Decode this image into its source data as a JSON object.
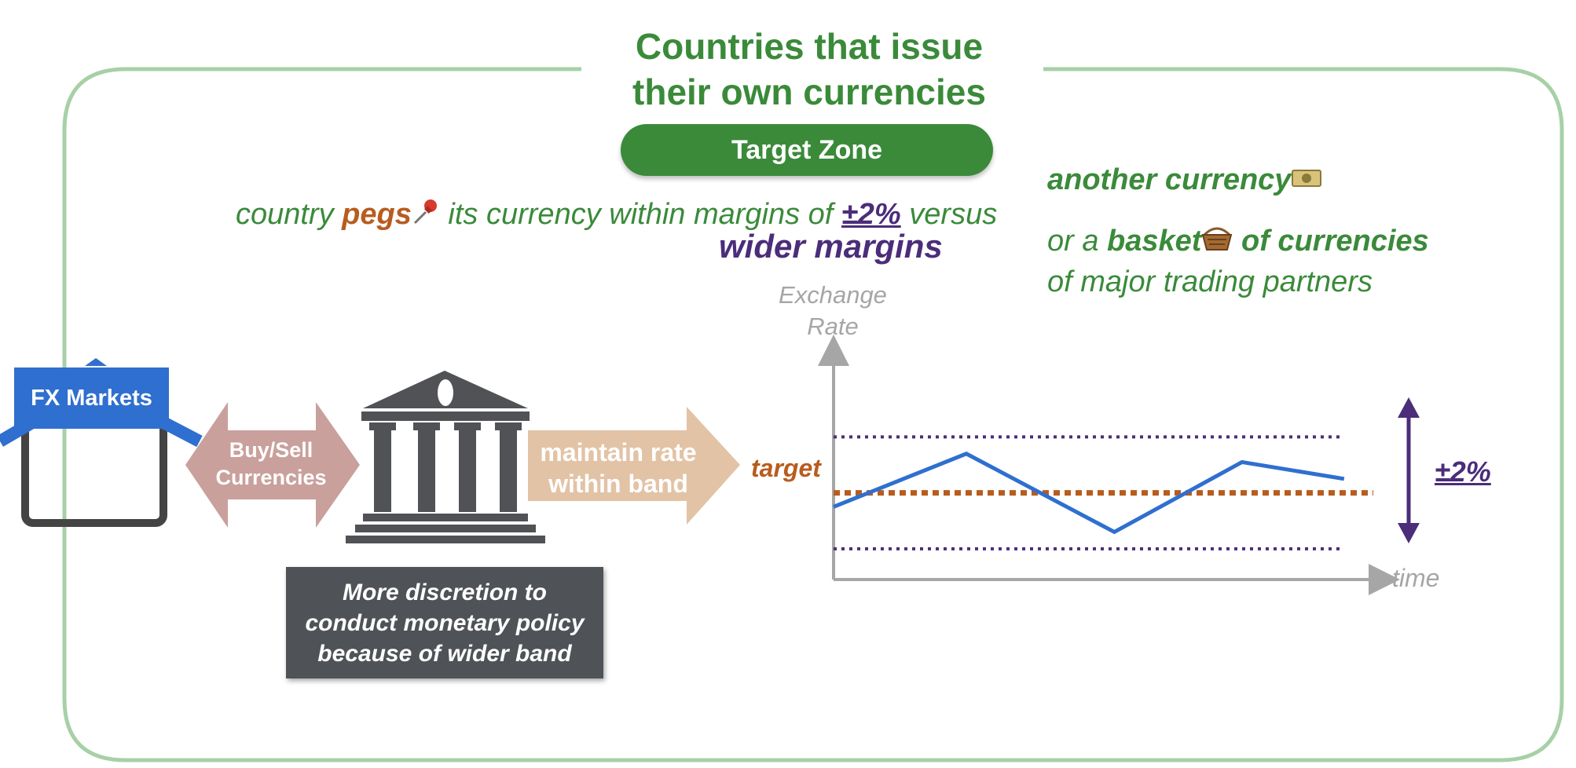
{
  "title": "Countries that issue their own currencies",
  "title_line1": "Countries that issue",
  "title_line2": "their own currencies",
  "scheme_pill": "Target Zone",
  "description": {
    "part1": "country ",
    "peg_word": "pegs",
    "part2": " its currency within margins of ",
    "percent": "±2%",
    "part3": " versus"
  },
  "wider_margins": "wider margins",
  "another_currency": "another currency",
  "basket": {
    "prefix": "or a ",
    "word": "basket",
    "suffix": " of currencies",
    "line2": "of major trading partners"
  },
  "diagram": {
    "fx_markets": "FX Markets",
    "buy_sell_line1": "Buy/Sell",
    "buy_sell_line2": "Currencies",
    "maintain_line1": "maintain rate",
    "maintain_line2": "within band",
    "note_line1": "More discretion to",
    "note_line2": "conduct monetary policy",
    "note_line3": "because of wider band"
  },
  "chart_data": {
    "type": "line",
    "ylabel_line1": "Exchange",
    "ylabel_line2": "Rate",
    "xlabel": "time",
    "target_label": "target",
    "band_label": "±2%",
    "target_value": 0,
    "upper_band": 2,
    "lower_band": -2,
    "ylim": [
      -3.1,
      5.1
    ],
    "xlim": [
      0,
      10
    ],
    "series": [
      {
        "x": [
          0,
          2.6,
          5.5,
          8.0,
          10.0
        ],
        "values": [
          -0.5,
          1.4,
          -1.4,
          1.1,
          0.5
        ]
      }
    ]
  },
  "colors": {
    "green": "#3a8a3a",
    "frame": "#a7d0a7",
    "orange": "#b85c1e",
    "purple": "#4b2d7a",
    "blue": "#2f6fcf",
    "gray_axis": "#a6a6a6",
    "bank": "#505256",
    "rose_arrow": "#c9a09c",
    "tan_arrow": "#e2c3a5"
  }
}
